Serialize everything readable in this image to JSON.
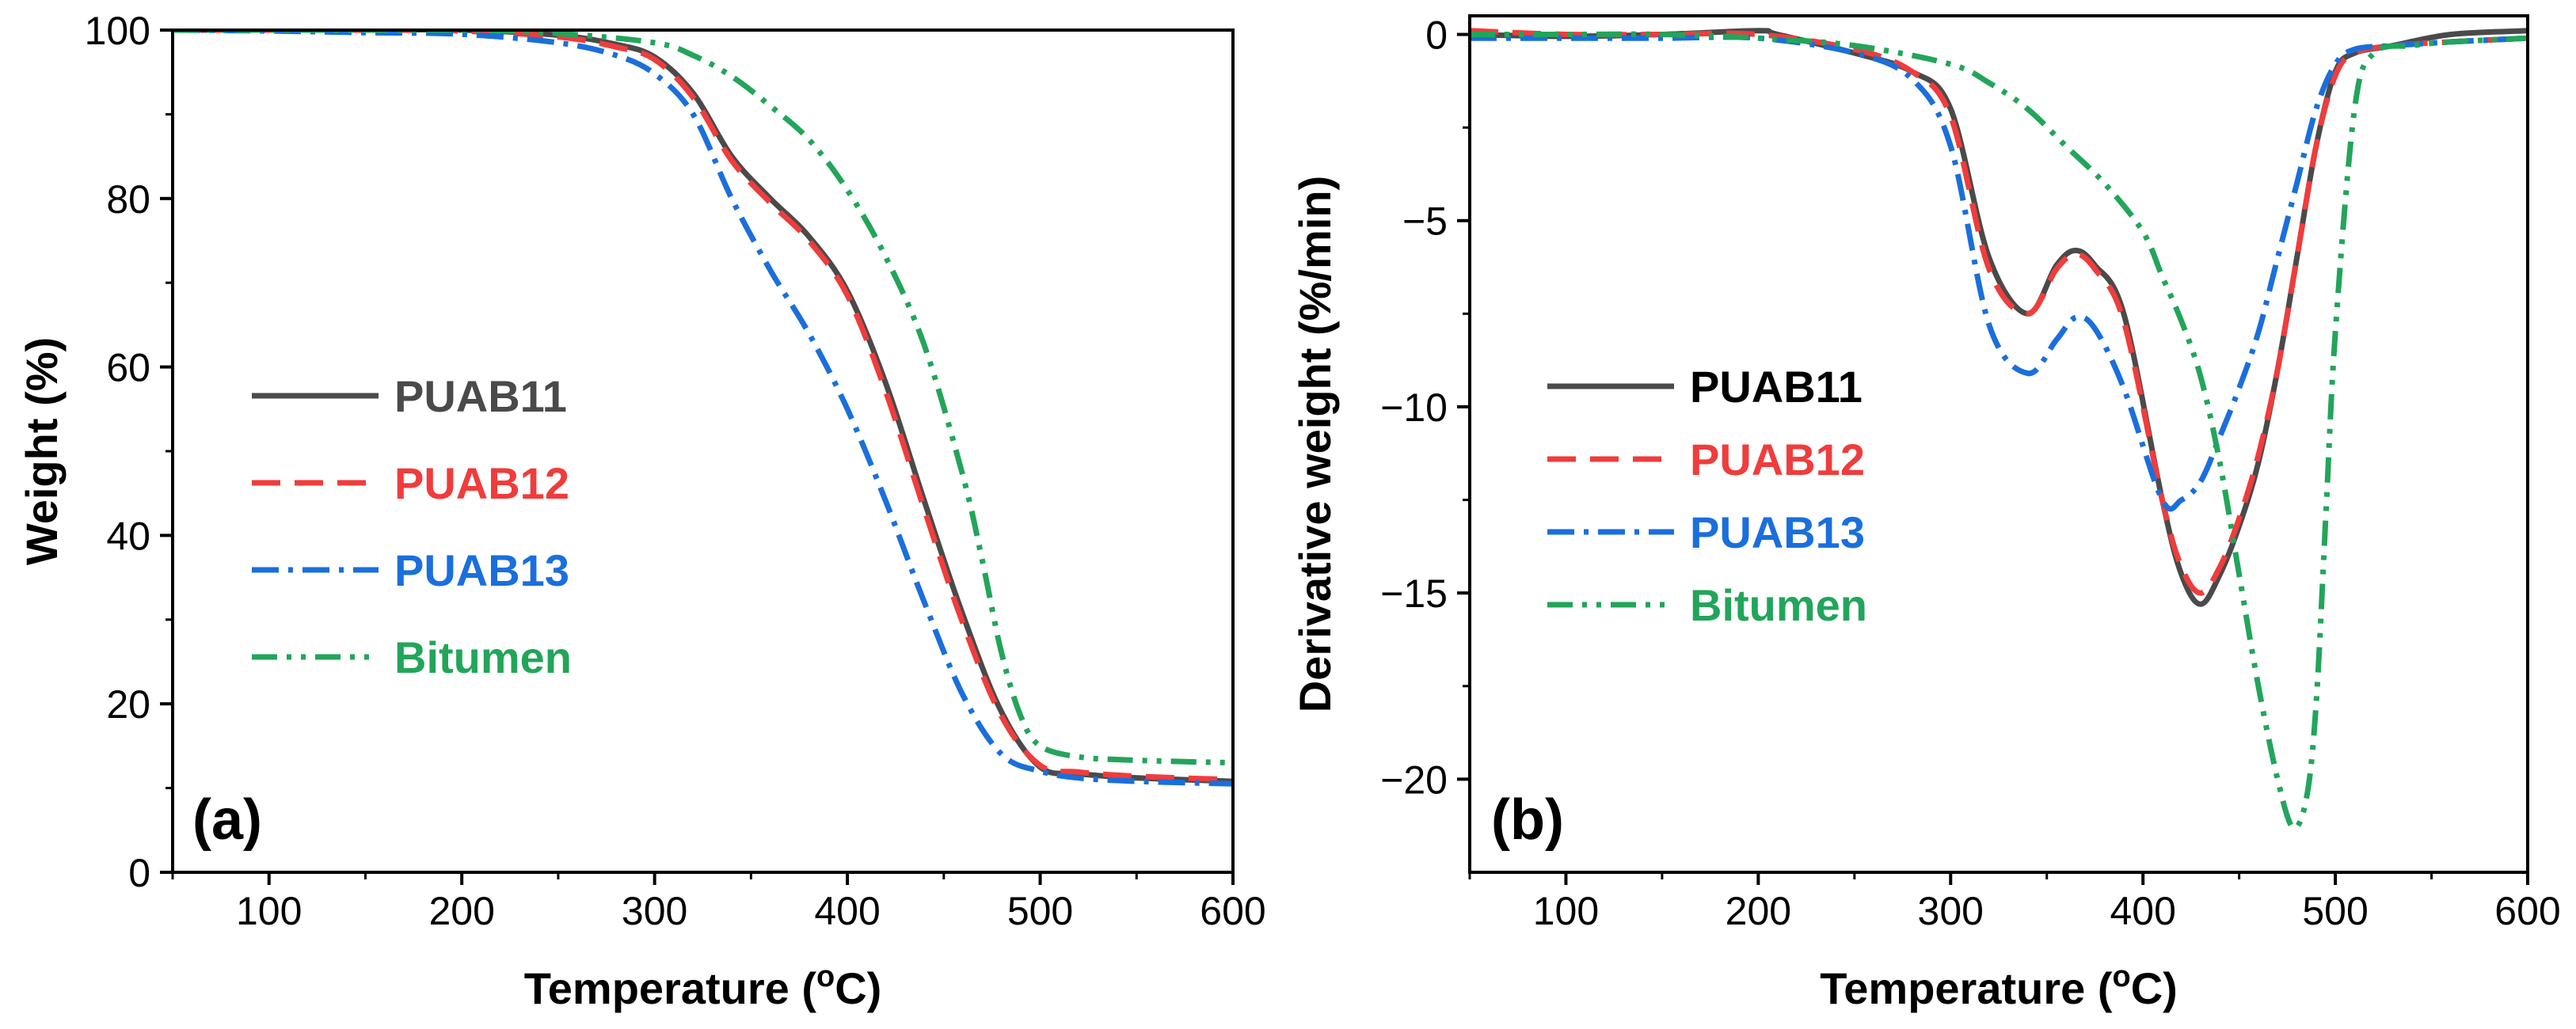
{
  "chart_data": [
    {
      "type": "line",
      "panel_label": "(a)",
      "title": "",
      "xlabel": "Temperature (",
      "xlabel_sup": "o",
      "xlabel_tail": "C)",
      "ylabel": "Weight (%)",
      "xlim": [
        50,
        600
      ],
      "ylim": [
        0,
        100
      ],
      "x_ticks": [
        100,
        200,
        300,
        400,
        500,
        600
      ],
      "y_ticks": [
        0,
        20,
        40,
        60,
        80,
        100
      ],
      "x_tick_labels": [
        "100",
        "200",
        "300",
        "400",
        "500",
        "600"
      ],
      "y_tick_labels": [
        "0",
        "20",
        "40",
        "60",
        "80",
        "100"
      ],
      "legend_position": "center-left",
      "series": [
        {
          "name": "PUAB11",
          "color": "#4a4a4a",
          "dash": "solid",
          "x": [
            50,
            100,
            150,
            200,
            250,
            280,
            300,
            320,
            340,
            360,
            380,
            400,
            420,
            440,
            460,
            480,
            500,
            520,
            550,
            600
          ],
          "y": [
            100,
            100,
            100,
            100,
            99.4,
            98.3,
            96.8,
            92.5,
            85,
            80,
            75.5,
            69,
            58,
            44,
            30.5,
            19,
            12.5,
            11.7,
            11.2,
            10.8
          ]
        },
        {
          "name": "PUAB12",
          "color": "#f03c3c",
          "dash": "dash",
          "x": [
            50,
            100,
            150,
            200,
            250,
            280,
            300,
            320,
            340,
            360,
            380,
            400,
            420,
            440,
            460,
            480,
            500,
            520,
            550,
            600
          ],
          "y": [
            100,
            100,
            100,
            99.9,
            99.2,
            98,
            96.5,
            92,
            84.5,
            79.5,
            75,
            68.5,
            57,
            43,
            29.5,
            18.5,
            12.7,
            11.9,
            11.4,
            11
          ]
        },
        {
          "name": "PUAB13",
          "color": "#1a6fdc",
          "dash": "dashdot",
          "x": [
            50,
            100,
            150,
            200,
            250,
            280,
            300,
            320,
            340,
            360,
            380,
            400,
            420,
            440,
            460,
            480,
            500,
            520,
            550,
            600
          ],
          "y": [
            100,
            99.9,
            99.7,
            99.5,
            98.5,
            97,
            94.8,
            90,
            80,
            71.5,
            64,
            55,
            44,
            32,
            21,
            14,
            12,
            11.2,
            10.8,
            10.5
          ]
        },
        {
          "name": "Bitumen",
          "color": "#22a55a",
          "dash": "dashdotdot",
          "x": [
            50,
            100,
            150,
            200,
            250,
            300,
            320,
            340,
            360,
            380,
            400,
            420,
            440,
            460,
            470,
            480,
            490,
            500,
            520,
            550,
            600
          ],
          "y": [
            100,
            100,
            100,
            100,
            99.6,
            98.5,
            97,
            94.5,
            91,
            87,
            81,
            73,
            62.5,
            47,
            37,
            26,
            18.5,
            15,
            13.7,
            13.3,
            13
          ]
        }
      ]
    },
    {
      "type": "line",
      "panel_label": "(b)",
      "title": "",
      "xlabel": "Temperature (",
      "xlabel_sup": "o",
      "xlabel_tail": "C)",
      "ylabel": "Derivative weight (%/min)",
      "xlim": [
        50,
        600
      ],
      "ylim": [
        -22.5,
        0.5
      ],
      "x_ticks": [
        100,
        200,
        300,
        400,
        500,
        600
      ],
      "y_ticks": [
        0,
        -5,
        -10,
        -15,
        -20
      ],
      "x_tick_labels": [
        "100",
        "200",
        "300",
        "400",
        "500",
        "600"
      ],
      "y_tick_labels": [
        "0",
        "−5",
        "−10",
        "−15",
        "−20"
      ],
      "legend_position": "center-left",
      "series": [
        {
          "name": "PUAB11",
          "color": "#4a4a4a",
          "dash": "solid",
          "x": [
            50,
            100,
            150,
            200,
            210,
            250,
            280,
            300,
            320,
            340,
            355,
            365,
            375,
            390,
            410,
            420,
            430,
            440,
            450,
            460,
            470,
            480,
            490,
            500,
            510,
            530,
            560,
            600
          ],
          "y": [
            0,
            -0.05,
            0,
            0.1,
            0,
            -0.5,
            -1,
            -2,
            -6,
            -7.5,
            -6.2,
            -5.8,
            -6.2,
            -7.5,
            -12.5,
            -14.5,
            -15.3,
            -14.5,
            -13.2,
            -11.5,
            -9,
            -6,
            -3,
            -1,
            -0.5,
            -0.3,
            0,
            0.1
          ]
        },
        {
          "name": "PUAB12",
          "color": "#f03c3c",
          "dash": "dash",
          "x": [
            50,
            100,
            150,
            200,
            250,
            280,
            300,
            320,
            340,
            355,
            365,
            375,
            390,
            410,
            420,
            430,
            440,
            450,
            460,
            470,
            480,
            490,
            500,
            510,
            530,
            560,
            600
          ],
          "y": [
            0.1,
            0,
            0,
            0,
            -0.4,
            -1,
            -2.2,
            -6.3,
            -7.5,
            -6.3,
            -5.9,
            -6.3,
            -7.7,
            -12.5,
            -14.3,
            -15,
            -14.3,
            -13,
            -11.3,
            -9,
            -6,
            -3,
            -1.1,
            -0.5,
            -0.3,
            -0.2,
            -0.1
          ]
        },
        {
          "name": "PUAB13",
          "color": "#1a6fdc",
          "dash": "dashdot",
          "x": [
            50,
            100,
            150,
            200,
            250,
            280,
            300,
            320,
            340,
            355,
            365,
            375,
            390,
            410,
            420,
            430,
            440,
            450,
            460,
            470,
            480,
            490,
            500,
            510,
            530,
            560,
            600
          ],
          "y": [
            -0.1,
            -0.1,
            -0.1,
            -0.1,
            -0.5,
            -1.2,
            -3,
            -7.8,
            -9.1,
            -8.2,
            -7.6,
            -7.9,
            -9.5,
            -12.5,
            -12.5,
            -12,
            -10.8,
            -9.5,
            -8,
            -6,
            -4,
            -2,
            -0.8,
            -0.4,
            -0.3,
            -0.2,
            -0.1
          ]
        },
        {
          "name": "Bitumen",
          "color": "#22a55a",
          "dash": "dashdotdot",
          "x": [
            50,
            100,
            150,
            200,
            250,
            300,
            320,
            340,
            360,
            380,
            400,
            410,
            420,
            430,
            440,
            450,
            460,
            470,
            478,
            485,
            490,
            495,
            500,
            510,
            520,
            540,
            560,
            600
          ],
          "y": [
            0,
            0,
            0,
            -0.1,
            -0.3,
            -0.8,
            -1.3,
            -2,
            -3,
            -4,
            -5.3,
            -6.5,
            -7.7,
            -9.2,
            -11.5,
            -14.5,
            -17.5,
            -20,
            -21.3,
            -20.5,
            -18,
            -13,
            -8,
            -2,
            -0.5,
            -0.3,
            -0.2,
            -0.1
          ]
        }
      ]
    }
  ]
}
